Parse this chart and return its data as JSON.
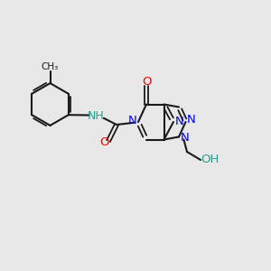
{
  "bg_color": "#e8e8e8",
  "bond_color": "#1a1a1a",
  "nitrogen_color": "#0000ff",
  "oxygen_color": "#ff0000",
  "oh_color": "#2a9d8f",
  "nh_color": "#2a9d8f",
  "figsize": [
    3.0,
    3.0
  ],
  "dpi": 100,
  "xlim": [
    0,
    10
  ],
  "ylim": [
    0,
    10
  ]
}
